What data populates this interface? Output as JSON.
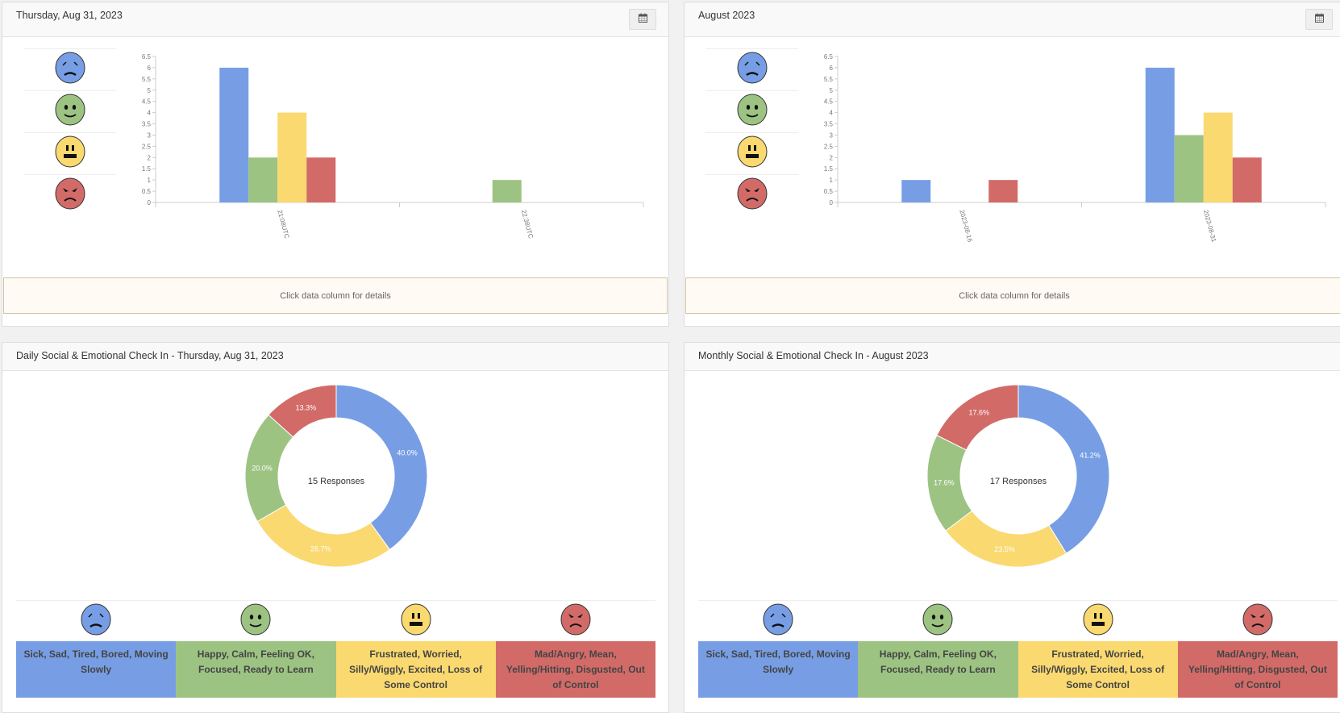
{
  "colors": {
    "blue": "#779ee4",
    "green": "#9dc383",
    "yellow": "#fad970",
    "red": "#d26b68"
  },
  "moods": [
    {
      "face": "sad-face-icon",
      "label": "Sick, Sad, Tired, Bored, Moving Slowly",
      "color": "#779ee4"
    },
    {
      "face": "happy-face-icon",
      "label": "Happy, Calm, Feeling OK, Focused, Ready to Learn",
      "color": "#9dc383"
    },
    {
      "face": "frustrated-face-icon",
      "label": "Frustrated, Worried, Silly/Wiggly, Excited, Loss of Some Control",
      "color": "#fad970"
    },
    {
      "face": "angry-face-icon",
      "label": "Mad/Angry, Mean, Yelling/Hitting, Disgusted, Out of Control",
      "color": "#d26b68"
    }
  ],
  "daily_bar": {
    "title": "Thursday, Aug 31, 2023",
    "calendar_icon": "calendar-icon",
    "info": "Click data column for details"
  },
  "monthly_bar": {
    "title": "August 2023",
    "calendar_icon": "calendar-icon",
    "info": "Click data column for details"
  },
  "daily_pie": {
    "title": "Daily Social & Emotional Check In - Thursday, Aug 31, 2023",
    "center": "15 Responses"
  },
  "monthly_pie": {
    "title": "Monthly Social & Emotional Check In - August 2023",
    "center": "17 Responses"
  },
  "chart_data": [
    {
      "type": "bar",
      "id": "daily_bar",
      "categories": [
        "21:08UTC",
        "22:38UTC"
      ],
      "series": [
        {
          "name": "Sick, Sad, Tired, Bored, Moving Slowly",
          "values": [
            6,
            0
          ]
        },
        {
          "name": "Happy, Calm, Feeling OK, Focused, Ready to Learn",
          "values": [
            2,
            1
          ]
        },
        {
          "name": "Frustrated, Worried, Silly/Wiggly, Excited, Loss of Some Control",
          "values": [
            4,
            0
          ]
        },
        {
          "name": "Mad/Angry, Mean, Yelling/Hitting, Disgusted, Out of Control",
          "values": [
            2,
            0
          ]
        }
      ],
      "ylim": [
        0,
        6.5
      ],
      "yticks": [
        "0",
        "0.5",
        "1",
        "1.5",
        "2",
        "2.5",
        "3",
        "3.5",
        "4",
        "4.5",
        "5",
        "5.5",
        "6",
        "6.5"
      ]
    },
    {
      "type": "bar",
      "id": "monthly_bar",
      "categories": [
        "2023-08-16",
        "2023-08-31"
      ],
      "series": [
        {
          "name": "Sick, Sad, Tired, Bored, Moving Slowly",
          "values": [
            1,
            6
          ]
        },
        {
          "name": "Happy, Calm, Feeling OK, Focused, Ready to Learn",
          "values": [
            0,
            3
          ]
        },
        {
          "name": "Frustrated, Worried, Silly/Wiggly, Excited, Loss of Some Control",
          "values": [
            0,
            4
          ]
        },
        {
          "name": "Mad/Angry, Mean, Yelling/Hitting, Disgusted, Out of Control",
          "values": [
            1,
            2
          ]
        }
      ],
      "ylim": [
        0,
        6.5
      ],
      "yticks": [
        "0",
        "0.5",
        "1",
        "1.5",
        "2",
        "2.5",
        "3",
        "3.5",
        "4",
        "4.5",
        "5",
        "5.5",
        "6",
        "6.5"
      ]
    },
    {
      "type": "pie",
      "id": "daily_pie",
      "slices": [
        {
          "value": 6,
          "label": "40.0%",
          "color": "#779ee4"
        },
        {
          "value": 4,
          "label": "26.7%",
          "color": "#fad970"
        },
        {
          "value": 3,
          "label": "20.0%",
          "color": "#9dc383"
        },
        {
          "value": 2,
          "label": "13.3%",
          "color": "#d26b68"
        }
      ]
    },
    {
      "type": "pie",
      "id": "monthly_pie",
      "slices": [
        {
          "value": 7,
          "label": "41.2%",
          "color": "#779ee4"
        },
        {
          "value": 4,
          "label": "23.5%",
          "color": "#fad970"
        },
        {
          "value": 3,
          "label": "17.6%",
          "color": "#9dc383"
        },
        {
          "value": 3,
          "label": "17.6%",
          "color": "#d26b68"
        }
      ]
    }
  ]
}
